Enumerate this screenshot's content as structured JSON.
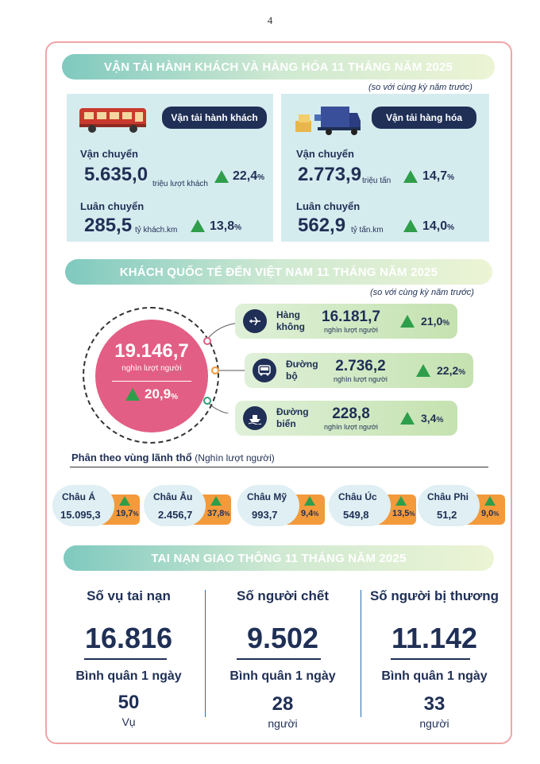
{
  "page_number": "4",
  "transport": {
    "title": "VẬN TẢI HÀNH KHÁCH VÀ HÀNG HÓA 11 THÁNG NĂM 2025",
    "note": "(so với cùng kỳ năm trước)",
    "passenger": {
      "label": "Vận tải hành khách",
      "carried_label": "Vận chuyển",
      "carried_value": "5.635,0",
      "carried_unit": "triệu lượt khách",
      "carried_pct": "22,4",
      "rotation_label": "Luân chuyển",
      "rotation_value": "285,5",
      "rotation_unit": "tỷ khách.km",
      "rotation_pct": "13,8"
    },
    "cargo": {
      "label": "Vận tải hàng hóa",
      "carried_label": "Vận chuyển",
      "carried_value": "2.773,9",
      "carried_unit": "triệu tấn",
      "carried_pct": "14,7",
      "rotation_label": "Luân chuyển",
      "rotation_value": "562,9",
      "rotation_unit": "tỷ tấn.km",
      "rotation_pct": "14,0"
    },
    "pct_sign": "%"
  },
  "visitors": {
    "title": "KHÁCH QUỐC TẾ ĐẾN VIỆT NAM 11 THÁNG NĂM 2025",
    "note": "(so với cùng kỳ năm trước)",
    "total_value": "19.146,7",
    "total_unit": "nghìn lượt người",
    "total_pct": "20,9",
    "modes": [
      {
        "name_1": "Hàng",
        "name_2": "không",
        "value": "16.181,7",
        "unit": "nghìn lượt người",
        "pct": "21,0",
        "icon": "airplane-icon"
      },
      {
        "name_1": "Đường",
        "name_2": "bộ",
        "value": "2.736,2",
        "unit": "nghìn lượt người",
        "pct": "22,2",
        "icon": "bus-icon"
      },
      {
        "name_1": "Đường",
        "name_2": "biển",
        "value": "228,8",
        "unit": "nghìn lượt người",
        "pct": "3,4",
        "icon": "ship-icon"
      }
    ],
    "region_title": "Phân theo vùng lãnh thổ",
    "region_unit": "(Nghìn lượt người)",
    "regions": [
      {
        "name": "Châu Á",
        "value": "15.095,3",
        "pct": "19,7"
      },
      {
        "name": "Châu Âu",
        "value": "2.456,7",
        "pct": "37,8"
      },
      {
        "name": "Châu Mỹ",
        "value": "993,7",
        "pct": "9,4"
      },
      {
        "name": "Châu Úc",
        "value": "549,8",
        "pct": "13,5"
      },
      {
        "name": "Châu Phi",
        "value": "51,2",
        "pct": "9,0"
      }
    ]
  },
  "accidents": {
    "title": "TAI NẠN GIAO THÔNG 11 THÁNG NĂM 2025",
    "daily_label": "Bình quân 1 ngày",
    "items": [
      {
        "heading": "Số vụ tai nạn",
        "value": "16.816",
        "daily": "50",
        "unit": "Vụ"
      },
      {
        "heading": "Số người chết",
        "value": "9.502",
        "daily": "28",
        "unit": "người"
      },
      {
        "heading": "Số người bị thương",
        "value": "11.142",
        "daily": "33",
        "unit": "người"
      }
    ]
  },
  "colors": {
    "navy": "#1f2f55",
    "green_up": "#2e9e4a",
    "pink_circle": "#e25e84",
    "orange_tag": "#f39a3b",
    "panel_blue": "#d5ecef",
    "frame_pink": "#f0a5a7"
  }
}
